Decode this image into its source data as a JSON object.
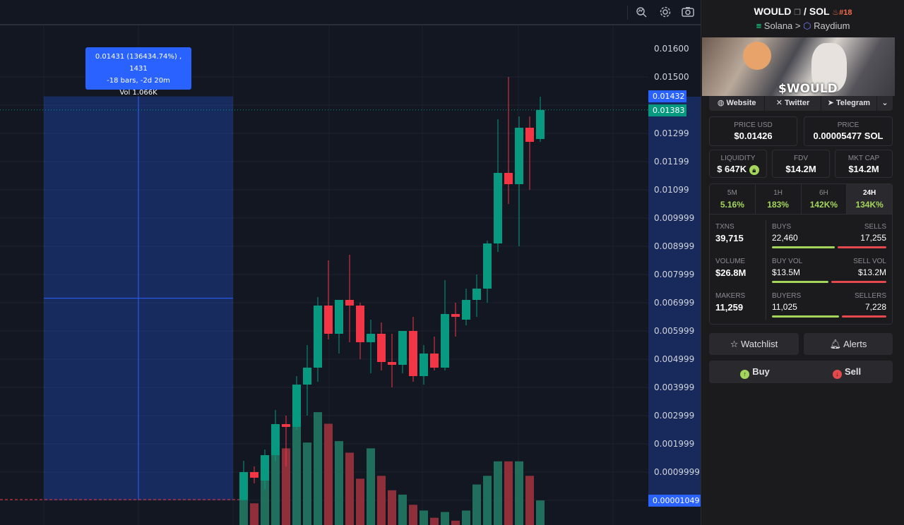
{
  "tooltip": {
    "line1": "0.01431 (136434.74%) , 1431",
    "line2": "-18 bars, -2d 20m",
    "line3": "Vol 1.066K"
  },
  "price_axis": {
    "labels": [
      "0.01600",
      "0.01500",
      "0.01299",
      "0.01199",
      "0.01099",
      "0.009999",
      "0.008999",
      "0.007999",
      "0.006999",
      "0.005999",
      "0.004999",
      "0.003999",
      "0.002999",
      "0.001999",
      "0.0009999"
    ],
    "tag_high": "0.01432",
    "tag_current": "0.01383",
    "tag_low": "0.00001049",
    "colors": {
      "blue": "#2962ff",
      "green": "#089981"
    }
  },
  "chart_data": {
    "type": "candlestick",
    "candles": [
      {
        "o": 1e-05,
        "h": 0.0014,
        "l": 1e-05,
        "c": 0.001
      },
      {
        "o": 0.001,
        "h": 0.0012,
        "l": 0.0006,
        "c": 0.0008
      },
      {
        "o": 0.0007,
        "h": 0.0018,
        "l": 0.0004,
        "c": 0.0016
      },
      {
        "o": 0.0016,
        "h": 0.0032,
        "l": 0.0014,
        "c": 0.0027
      },
      {
        "o": 0.0027,
        "h": 0.003,
        "l": 0.0012,
        "c": 0.0026
      },
      {
        "o": 0.0026,
        "h": 0.0044,
        "l": 0.0025,
        "c": 0.0041
      },
      {
        "o": 0.0041,
        "h": 0.0055,
        "l": 0.003,
        "c": 0.0047
      },
      {
        "o": 0.0047,
        "h": 0.0072,
        "l": 0.0042,
        "c": 0.0069
      },
      {
        "o": 0.0069,
        "h": 0.0085,
        "l": 0.0057,
        "c": 0.0059
      },
      {
        "o": 0.0059,
        "h": 0.007,
        "l": 0.0052,
        "c": 0.0071
      },
      {
        "o": 0.0071,
        "h": 0.0087,
        "l": 0.0056,
        "c": 0.0069
      },
      {
        "o": 0.0069,
        "h": 0.007,
        "l": 0.005,
        "c": 0.0056
      },
      {
        "o": 0.0056,
        "h": 0.0064,
        "l": 0.0045,
        "c": 0.0059
      },
      {
        "o": 0.0059,
        "h": 0.0063,
        "l": 0.0046,
        "c": 0.0049
      },
      {
        "o": 0.0049,
        "h": 0.0059,
        "l": 0.004,
        "c": 0.0048
      },
      {
        "o": 0.0048,
        "h": 0.006,
        "l": 0.0045,
        "c": 0.006
      },
      {
        "o": 0.006,
        "h": 0.0065,
        "l": 0.0042,
        "c": 0.0044
      },
      {
        "o": 0.0044,
        "h": 0.0055,
        "l": 0.0041,
        "c": 0.0052
      },
      {
        "o": 0.0052,
        "h": 0.0058,
        "l": 0.0046,
        "c": 0.0047
      },
      {
        "o": 0.0047,
        "h": 0.0078,
        "l": 0.0046,
        "c": 0.0066
      },
      {
        "o": 0.0066,
        "h": 0.007,
        "l": 0.0058,
        "c": 0.0065
      },
      {
        "o": 0.0064,
        "h": 0.0075,
        "l": 0.0062,
        "c": 0.0071
      },
      {
        "o": 0.0071,
        "h": 0.008,
        "l": 0.0065,
        "c": 0.0075
      },
      {
        "o": 0.0075,
        "h": 0.0092,
        "l": 0.007,
        "c": 0.0091
      },
      {
        "o": 0.0091,
        "h": 0.0135,
        "l": 0.0088,
        "c": 0.0116
      },
      {
        "o": 0.0116,
        "h": 0.015,
        "l": 0.0105,
        "c": 0.0112
      },
      {
        "o": 0.0112,
        "h": 0.0136,
        "l": 0.009,
        "c": 0.0132
      },
      {
        "o": 0.0132,
        "h": 0.0136,
        "l": 0.011,
        "c": 0.0127
      },
      {
        "o": 0.0128,
        "h": 0.0143,
        "l": 0.0127,
        "c": 0.01383
      }
    ],
    "volume": [
      0.25,
      0.15,
      0.4,
      0.62,
      0.53,
      0.78,
      0.57,
      0.78,
      0.7,
      0.58,
      0.5,
      0.32,
      0.53,
      0.34,
      0.24,
      0.21,
      0.14,
      0.1,
      0.05,
      0.09,
      0.03,
      0.1,
      0.28,
      0.34,
      0.44,
      0.44,
      0.44,
      0.34,
      0.17
    ],
    "measure_range": {
      "price_top": 0.01431,
      "price_bottom": 1.049e-05
    }
  },
  "panel": {
    "pair": {
      "base": "WOULD",
      "sep": "/",
      "quote": "SOL",
      "rank": "#18"
    },
    "chain": {
      "network": "Solana",
      "arrow": ">",
      "dex": "Raydium"
    },
    "banner_text": "$WOULD",
    "links": {
      "website": "Website",
      "twitter": "Twitter",
      "telegram": "Telegram"
    },
    "price_usd": {
      "label": "PRICE USD",
      "value": "$0.01426"
    },
    "price_sol": {
      "label": "PRICE",
      "value": "0.00005477 SOL"
    },
    "liquidity": {
      "label": "LIQUIDITY",
      "value": "$ 647K"
    },
    "fdv": {
      "label": "FDV",
      "value": "$14.2M"
    },
    "mkt_cap": {
      "label": "MKT CAP",
      "value": "$14.2M"
    },
    "timeframes": [
      {
        "label": "5M",
        "value": "5.16%"
      },
      {
        "label": "1H",
        "value": "183%"
      },
      {
        "label": "6H",
        "value": "142K%"
      },
      {
        "label": "24H",
        "value": "134K%"
      }
    ],
    "stats": {
      "txns": {
        "label": "TXNS",
        "value": "39,715"
      },
      "buys": {
        "label": "BUYS",
        "value": "22,460"
      },
      "sells": {
        "label": "SELLS",
        "value": "17,255"
      },
      "volume": {
        "label": "VOLUME",
        "value": "$26.8M"
      },
      "buy_vol": {
        "label": "BUY VOL",
        "value": "$13.5M"
      },
      "sell_vol": {
        "label": "SELL VOL",
        "value": "$13.2M"
      },
      "makers": {
        "label": "MAKERS",
        "value": "11,259"
      },
      "buyers": {
        "label": "BUYERS",
        "value": "11,025"
      },
      "sellers": {
        "label": "SELLERS",
        "value": "7,228"
      },
      "buy_fraction": 0.566,
      "buy_vol_fraction": 0.506,
      "buyer_fraction": 0.604
    },
    "watchlist": "Watchlist",
    "alerts": "Alerts",
    "buy": "Buy",
    "sell": "Sell"
  }
}
